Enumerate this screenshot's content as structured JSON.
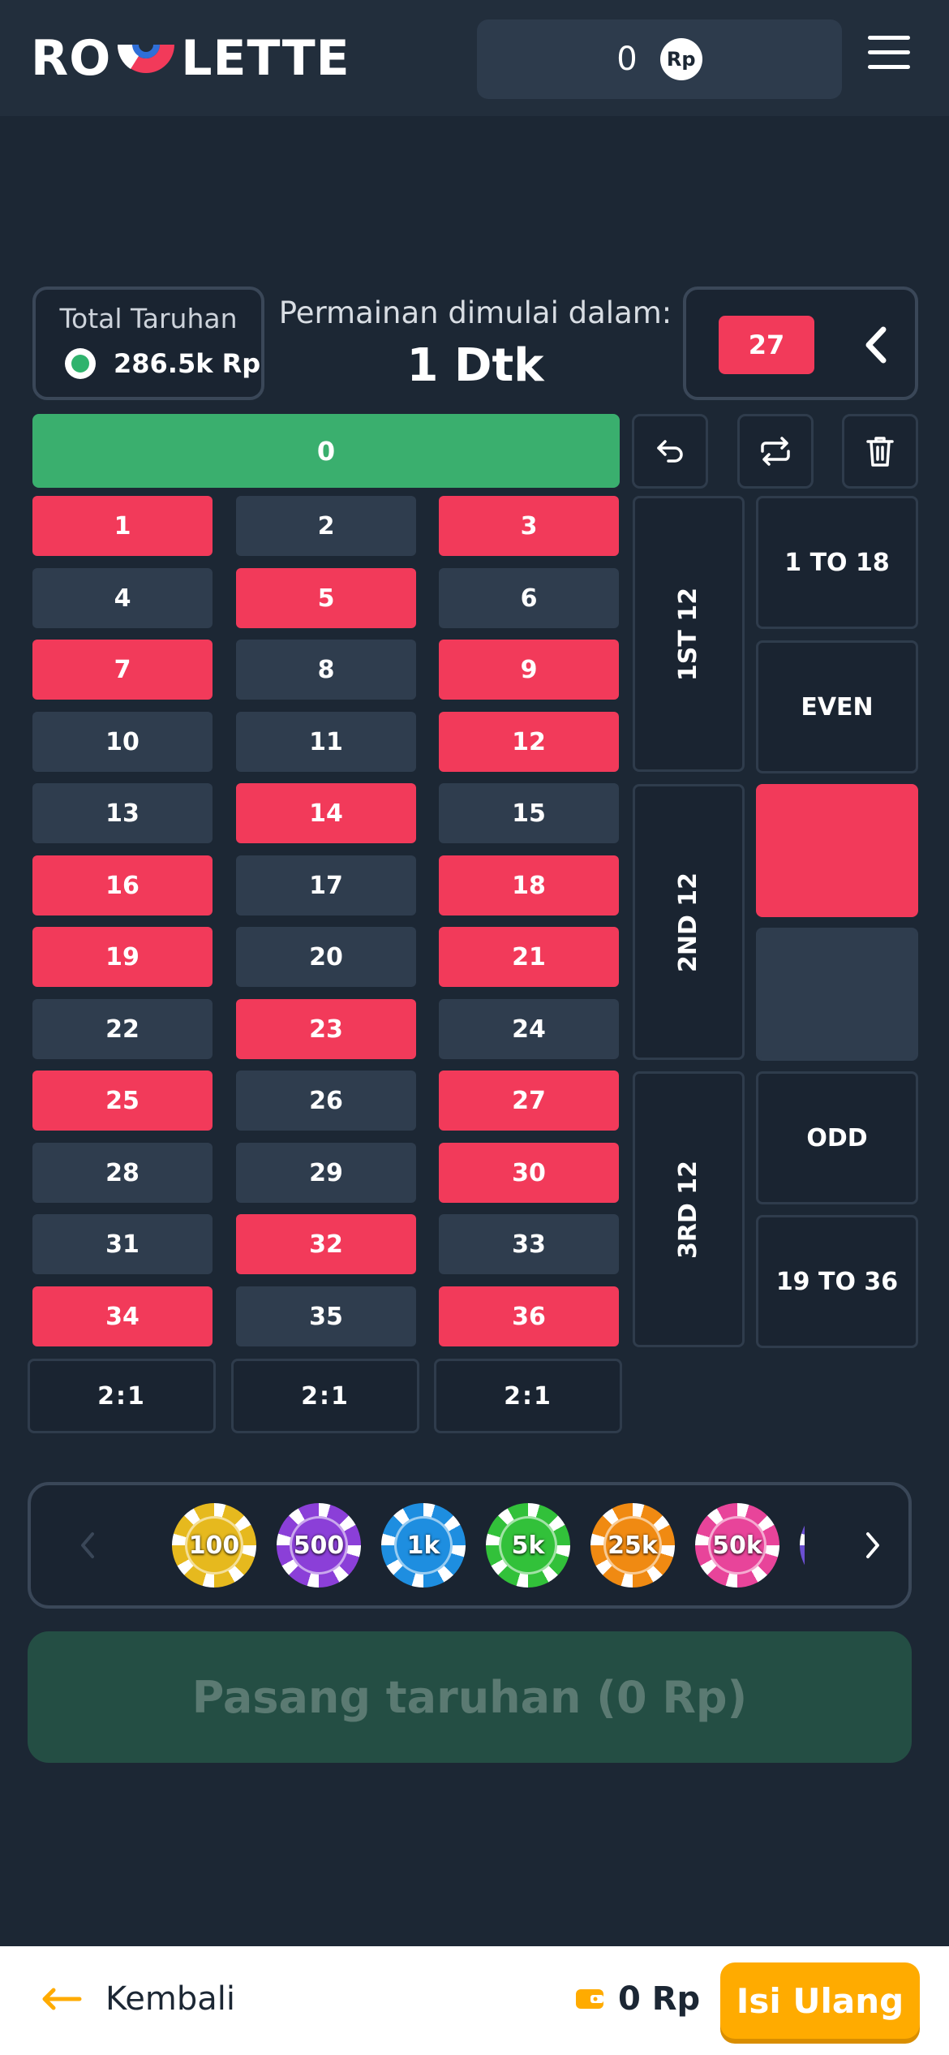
{
  "header": {
    "logo_left": "RO",
    "logo_right": "LETTE",
    "balance": "0",
    "currency_icon": "Rp"
  },
  "info": {
    "total_label": "Total Taruhan",
    "total_value": "286.5k Rp",
    "start_label": "Permainan dimulai dalam:",
    "start_time": "1 Dtk",
    "last_number": "27"
  },
  "board": {
    "zero": "0",
    "numbers": [
      [
        "1",
        "2",
        "3"
      ],
      [
        "4",
        "5",
        "6"
      ],
      [
        "7",
        "8",
        "9"
      ],
      [
        "10",
        "11",
        "12"
      ],
      [
        "13",
        "14",
        "15"
      ],
      [
        "16",
        "17",
        "18"
      ],
      [
        "19",
        "20",
        "21"
      ],
      [
        "22",
        "23",
        "24"
      ],
      [
        "25",
        "26",
        "27"
      ],
      [
        "28",
        "29",
        "30"
      ],
      [
        "31",
        "32",
        "33"
      ],
      [
        "34",
        "35",
        "36"
      ]
    ],
    "red_numbers": [
      1,
      3,
      5,
      7,
      9,
      12,
      14,
      16,
      18,
      19,
      21,
      23,
      25,
      27,
      30,
      32,
      34,
      36
    ],
    "dozens": [
      "1ST 12",
      "2ND 12",
      "3RD 12"
    ],
    "low": "1 TO 18",
    "even": "EVEN",
    "odd": "ODD",
    "high": "19 TO 36",
    "columns": [
      "2:1",
      "2:1",
      "2:1"
    ]
  },
  "chips": [
    {
      "label": "100",
      "color": "#e6b91e"
    },
    {
      "label": "500",
      "color": "#8b3fd8"
    },
    {
      "label": "1k",
      "color": "#1e8ee0"
    },
    {
      "label": "5k",
      "color": "#32c13a"
    },
    {
      "label": "25k",
      "color": "#f08a12"
    },
    {
      "label": "50k",
      "color": "#e8449a"
    },
    {
      "label": "",
      "color": "#6b4fd1"
    }
  ],
  "place_bet": "Pasang taruhan (0 Rp)",
  "footer": {
    "back_label": "Kembali",
    "balance": "0 Rp",
    "topup_label": "Isi Ulang"
  },
  "colors": {
    "red": "#f23a5a",
    "black": "#2f3d4e",
    "green": "#3aaf6e",
    "accent": "#ffab00"
  }
}
